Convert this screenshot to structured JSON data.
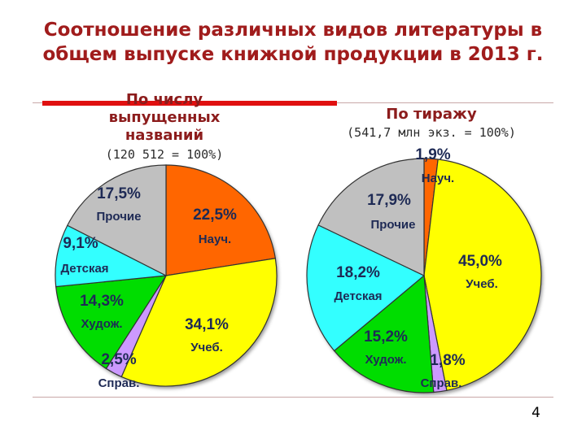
{
  "slide": {
    "title": "Соотношение различных видов литературы в общем выпуске книжной продукции в 2013 г.",
    "page_number": "4"
  },
  "left": {
    "header": "По числу выпущенных названий",
    "subtitle": "(120 512 = 100%)"
  },
  "right": {
    "header": "По тиражу",
    "subtitle": "(541,7 млн экз. = 100%)"
  },
  "colors": {
    "science": "#ff6600",
    "education": "#ffff00",
    "reference": "#cc99ff",
    "fiction": "#00dd00",
    "children": "#33ffff",
    "other": "#c0c0c0",
    "title": "#a01c1c",
    "accent_bar": "#e01010"
  },
  "chart_data": [
    {
      "type": "pie",
      "title": "По числу выпущенных названий",
      "subtitle": "(120 512 = 100%)",
      "slices": [
        {
          "name": "Науч.",
          "value": 22.5,
          "label": "22,5%",
          "color": "#ff6600"
        },
        {
          "name": "Учеб.",
          "value": 34.1,
          "label": "34,1%",
          "color": "#ffff00"
        },
        {
          "name": "Справ.",
          "value": 2.5,
          "label": "2,5%",
          "color": "#cc99ff"
        },
        {
          "name": "Худож.",
          "value": 14.3,
          "label": "14,3%",
          "color": "#00dd00"
        },
        {
          "name": "Детская",
          "value": 9.1,
          "label": "9,1%",
          "color": "#33ffff"
        },
        {
          "name": "Прочие",
          "value": 17.5,
          "label": "17,5%",
          "color": "#c0c0c0"
        }
      ]
    },
    {
      "type": "pie",
      "title": "По тиражу",
      "subtitle": "(541,7 млн экз. = 100%)",
      "slices": [
        {
          "name": "Науч.",
          "value": 1.9,
          "label": "1,9%",
          "color": "#ff6600"
        },
        {
          "name": "Учеб.",
          "value": 45.0,
          "label": "45,0%",
          "color": "#ffff00"
        },
        {
          "name": "Справ.",
          "value": 1.8,
          "label": "1,8%",
          "color": "#cc99ff"
        },
        {
          "name": "Худож.",
          "value": 15.2,
          "label": "15,2%",
          "color": "#00dd00"
        },
        {
          "name": "Детская",
          "value": 18.2,
          "label": "18,2%",
          "color": "#33ffff"
        },
        {
          "name": "Прочие",
          "value": 17.9,
          "label": "17,9%",
          "color": "#c0c0c0"
        }
      ]
    }
  ]
}
